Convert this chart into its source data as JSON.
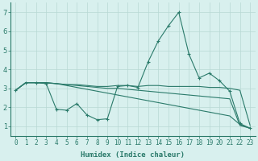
{
  "x": [
    0,
    1,
    2,
    3,
    4,
    5,
    6,
    7,
    8,
    9,
    10,
    11,
    12,
    13,
    14,
    15,
    16,
    17,
    18,
    19,
    20,
    21,
    22,
    23
  ],
  "line1": [
    2.9,
    3.3,
    3.3,
    3.25,
    1.9,
    1.85,
    2.2,
    1.6,
    1.35,
    1.4,
    3.1,
    3.15,
    3.05,
    4.4,
    5.5,
    6.3,
    7.0,
    4.8,
    3.55,
    3.8,
    3.4,
    2.85,
    1.15,
    0.9
  ],
  "line2": [
    2.9,
    3.3,
    3.3,
    3.3,
    3.25,
    3.2,
    3.2,
    3.15,
    3.1,
    3.1,
    3.15,
    3.15,
    3.1,
    3.15,
    3.15,
    3.1,
    3.1,
    3.1,
    3.1,
    3.05,
    3.05,
    3.0,
    2.9,
    1.05
  ],
  "line3": [
    2.9,
    3.3,
    3.3,
    3.3,
    3.25,
    3.2,
    3.15,
    3.1,
    3.05,
    3.0,
    3.0,
    2.95,
    2.9,
    2.85,
    2.8,
    2.75,
    2.7,
    2.65,
    2.6,
    2.55,
    2.5,
    2.45,
    1.05,
    0.9
  ],
  "line4": [
    2.9,
    3.3,
    3.3,
    3.28,
    3.25,
    3.15,
    3.05,
    2.95,
    2.85,
    2.75,
    2.65,
    2.55,
    2.45,
    2.35,
    2.25,
    2.15,
    2.05,
    1.95,
    1.85,
    1.75,
    1.65,
    1.55,
    1.1,
    0.9
  ],
  "color": "#2a7a6a",
  "bg_color": "#d8f0ee",
  "grid_color": "#b8d8d4",
  "xlabel": "Humidex (Indice chaleur)",
  "ylim": [
    0.5,
    7.5
  ],
  "xlim": [
    -0.5,
    23.5
  ],
  "yticks": [
    1,
    2,
    3,
    4,
    5,
    6,
    7
  ],
  "xticks": [
    0,
    1,
    2,
    3,
    4,
    5,
    6,
    7,
    8,
    9,
    10,
    11,
    12,
    13,
    14,
    15,
    16,
    17,
    18,
    19,
    20,
    21,
    22,
    23
  ],
  "xlabel_fontsize": 6.5,
  "tick_fontsize": 5.5,
  "ytick_fontsize": 6.0
}
